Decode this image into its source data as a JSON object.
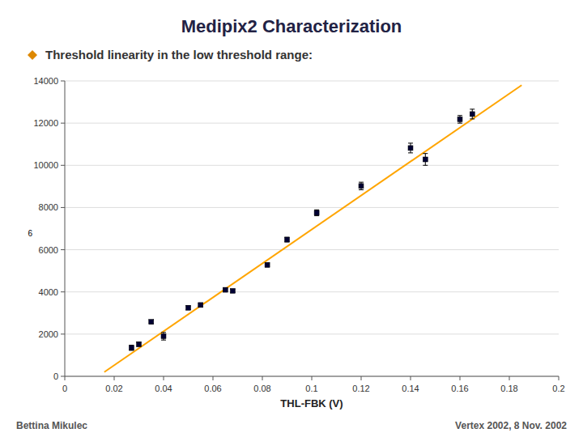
{
  "chart_data": {
    "type": "scatter",
    "title": "Medipix2 Characterization",
    "subtitle": "Threshold linearity in the low threshold range:",
    "xlabel": "THL-FBK (V)",
    "xlim": [
      0,
      0.2
    ],
    "ylim": [
      0,
      14000
    ],
    "xticks": [
      0,
      0.02,
      0.04,
      0.06,
      0.08,
      0.1,
      0.12,
      0.14,
      0.16,
      0.18,
      0.2
    ],
    "yticks": [
      0,
      2000,
      4000,
      6000,
      8000,
      10000,
      12000,
      14000
    ],
    "grid": true,
    "series": [
      {
        "type": "scatter",
        "marker": "square",
        "color": "#000033",
        "x": [
          0.027,
          0.03,
          0.035,
          0.04,
          0.05,
          0.055,
          0.065,
          0.068,
          0.082,
          0.09,
          0.102,
          0.12,
          0.14,
          0.146,
          0.16,
          0.165
        ],
        "values": [
          1350,
          1520,
          2580,
          1900,
          3250,
          3380,
          4100,
          4050,
          5280,
          6480,
          7750,
          9020,
          10820,
          10280,
          12180,
          12430
        ],
        "errors": [
          120,
          100,
          90,
          180,
          90,
          90,
          70,
          70,
          90,
          110,
          140,
          180,
          230,
          280,
          180,
          230
        ]
      },
      {
        "type": "line",
        "line_style": "solid",
        "color": "#ffa500",
        "x": [
          0.016,
          0.185
        ],
        "values": [
          200,
          13800
        ]
      }
    ],
    "annotations": [
      {
        "text": "6",
        "x": 0,
        "y": 6800
      },
      {
        "text": "Bettina Mikulec"
      },
      {
        "text": "Vertex 2002, 8 Nov. 2002"
      }
    ]
  }
}
